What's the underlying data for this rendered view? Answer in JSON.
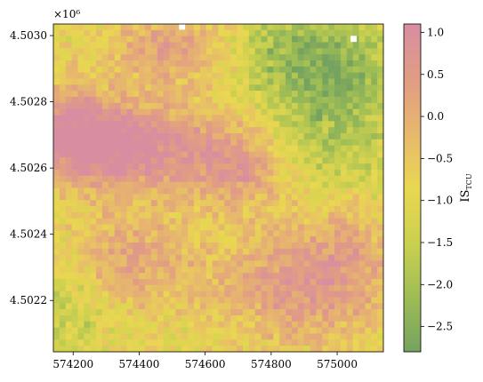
{
  "chart_data": {
    "type": "heatmap",
    "title": "",
    "xlabel": "",
    "ylabel": "",
    "offset_text": "×10⁶",
    "colorbar_label": "IS_TCU",
    "colorbar_label_main": "IS",
    "colorbar_label_sub": "TCU",
    "xlim": [
      574140,
      575140
    ],
    "ylim": [
      4502045,
      4503035
    ],
    "x_ticks": [
      574200,
      574400,
      574600,
      574800,
      575000
    ],
    "x_tick_labels": [
      "574200",
      "574400",
      "574600",
      "574800",
      "575000"
    ],
    "y_ticks": [
      4502200,
      4502400,
      4502600,
      4502800,
      4503000
    ],
    "y_tick_labels": [
      "4.5022",
      "4.5024",
      "4.5026",
      "4.5028",
      "4.5030"
    ],
    "clim": [
      -2.8,
      1.1
    ],
    "colorbar_ticks": [
      1.0,
      0.5,
      0.0,
      -0.5,
      -1.0,
      -1.5,
      -2.0,
      -2.5
    ],
    "colorbar_tick_labels": [
      "1.0",
      "0.5",
      "0.0",
      "−0.5",
      "−1.0",
      "−1.5",
      "−2.0",
      "−2.5"
    ],
    "colormap": [
      "#75a35f",
      "#9fbd55",
      "#cbd04f",
      "#e9d751",
      "#e7b86d",
      "#e19c84",
      "#d88da1"
    ],
    "grid_resolution": [
      54,
      54
    ],
    "value_field": "approximate spatial field: high values (pink, ~0.5 to 1.0) in a diagonal band across the upper-left and center-left, another pink region in the lower-center/right; low values (green, ~-1.5 to -2.5) in the upper-right; yellow (~-1.0) transition zones in between",
    "missing_cells": [
      [
        574530,
        4503027
      ],
      [
        575050,
        4502990
      ]
    ],
    "grid": false
  }
}
